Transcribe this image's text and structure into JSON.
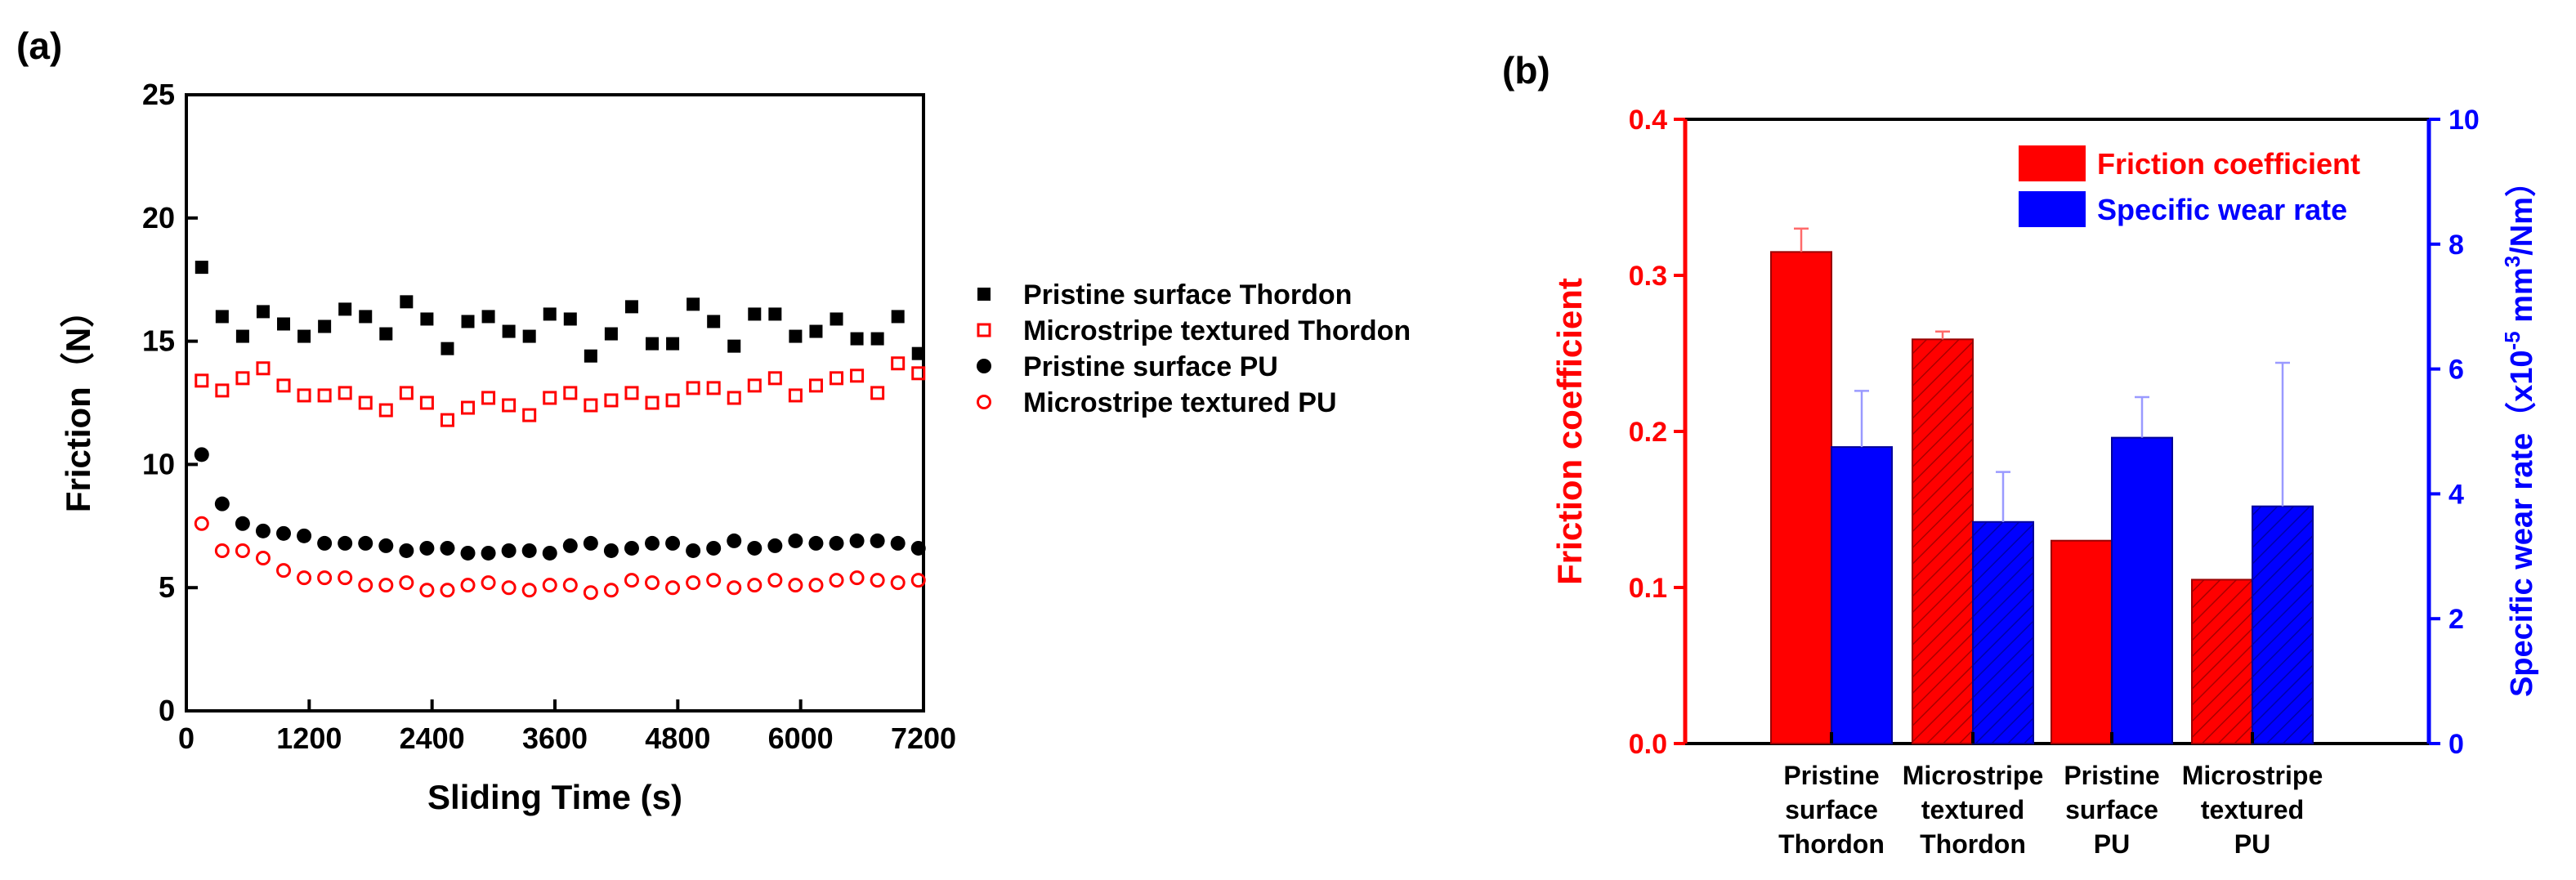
{
  "panel_labels": {
    "a": "(a)",
    "b": "(b)"
  },
  "chart_data": [
    {
      "type": "scatter",
      "xlabel": "Sliding Time (s)",
      "ylabel": "Friction（N）",
      "xlim": [
        0,
        7200
      ],
      "ylim": [
        0,
        25
      ],
      "xticks": [
        0,
        1200,
        2400,
        3600,
        4800,
        6000,
        7200
      ],
      "yticks": [
        0,
        5,
        10,
        15,
        20,
        25
      ],
      "x": [
        150,
        350,
        550,
        750,
        950,
        1150,
        1350,
        1550,
        1750,
        1950,
        2150,
        2350,
        2550,
        2750,
        2950,
        3150,
        3350,
        3550,
        3750,
        3950,
        4150,
        4350,
        4550,
        4750,
        4950,
        5150,
        5350,
        5550,
        5750,
        5950,
        6150,
        6350,
        6550,
        6750,
        6950,
        7150
      ],
      "series": [
        {
          "name": "Pristine surface Thordon",
          "marker": "filled-square",
          "color": "#000000",
          "values": [
            18.0,
            16.0,
            15.2,
            16.2,
            15.7,
            15.2,
            15.6,
            16.3,
            16.0,
            15.3,
            16.6,
            15.9,
            14.7,
            15.8,
            16.0,
            15.4,
            15.2,
            16.1,
            15.9,
            14.4,
            15.3,
            16.4,
            14.9,
            14.9,
            16.5,
            15.8,
            14.8,
            16.1,
            16.1,
            15.2,
            15.4,
            15.9,
            15.1,
            15.1,
            16.0,
            14.5
          ]
        },
        {
          "name": "Microstripe textured Thordon",
          "marker": "open-square",
          "color": "#ff0000",
          "values": [
            13.4,
            13.0,
            13.5,
            13.9,
            13.2,
            12.8,
            12.8,
            12.9,
            12.5,
            12.2,
            12.9,
            12.5,
            11.8,
            12.3,
            12.7,
            12.4,
            12.0,
            12.7,
            12.9,
            12.4,
            12.6,
            12.9,
            12.5,
            12.6,
            13.1,
            13.1,
            12.7,
            13.2,
            13.5,
            12.8,
            13.2,
            13.5,
            13.6,
            12.9,
            14.1,
            13.7
          ]
        },
        {
          "name": "Pristine surface PU",
          "marker": "filled-circle",
          "color": "#000000",
          "values": [
            10.4,
            8.4,
            7.6,
            7.3,
            7.2,
            7.1,
            6.8,
            6.8,
            6.8,
            6.7,
            6.5,
            6.6,
            6.6,
            6.4,
            6.4,
            6.5,
            6.5,
            6.4,
            6.7,
            6.8,
            6.5,
            6.6,
            6.8,
            6.8,
            6.5,
            6.6,
            6.9,
            6.6,
            6.7,
            6.9,
            6.8,
            6.8,
            6.9,
            6.9,
            6.8,
            6.6
          ]
        },
        {
          "name": "Microstripe textured PU",
          "marker": "open-circle",
          "color": "#ff0000",
          "values": [
            7.6,
            6.5,
            6.5,
            6.2,
            5.7,
            5.4,
            5.4,
            5.4,
            5.1,
            5.1,
            5.2,
            4.9,
            4.9,
            5.1,
            5.2,
            5.0,
            4.9,
            5.1,
            5.1,
            4.8,
            4.9,
            5.3,
            5.2,
            5.0,
            5.2,
            5.3,
            5.0,
            5.1,
            5.3,
            5.1,
            5.1,
            5.3,
            5.4,
            5.3,
            5.2,
            5.3
          ]
        }
      ],
      "legend_position": "right"
    },
    {
      "type": "bar",
      "categories": [
        [
          "Pristine",
          "surface",
          "Thordon"
        ],
        [
          "Microstripe",
          "textured",
          "Thordon"
        ],
        [
          "Pristine",
          "surface",
          "PU"
        ],
        [
          "Microstripe",
          "textured",
          "PU"
        ]
      ],
      "hatched": [
        false,
        true,
        false,
        true
      ],
      "left_axis": {
        "title": "Friction coefficient",
        "ylim": [
          0,
          0.4
        ],
        "ticks": [
          "0.0",
          "0.1",
          "0.2",
          "0.3",
          "0.4"
        ],
        "color": "#ff0000"
      },
      "right_axis": {
        "title_main": "Specific wear rate",
        "title_unit": "（x10",
        "title_exp1": "-5",
        "title_mid": " mm",
        "title_exp2": "3",
        "title_end": "/Nm）",
        "ylim": [
          0,
          10
        ],
        "ticks": [
          "0",
          "2",
          "4",
          "6",
          "8",
          "10"
        ],
        "color": "#0000ff"
      },
      "series": [
        {
          "name": "Friction coefficient",
          "axis": "left",
          "color": "#ff0000",
          "values": [
            0.315,
            0.259,
            0.13,
            0.105
          ],
          "errors": [
            0.015,
            0.005,
            0.0,
            0.0
          ]
        },
        {
          "name": "Specific wear rate",
          "axis": "right",
          "color": "#0000ff",
          "values": [
            4.75,
            3.55,
            4.9,
            3.8
          ],
          "errors": [
            0.9,
            0.8,
            0.65,
            2.3
          ]
        }
      ],
      "legend_position": "top-right"
    }
  ]
}
